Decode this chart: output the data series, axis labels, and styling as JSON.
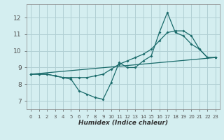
{
  "xlabel": "Humidex (Indice chaleur)",
  "bg_color": "#d4eef0",
  "grid_color": "#b0d0d4",
  "line_color": "#1a6b6b",
  "xlim": [
    -0.5,
    23.5
  ],
  "ylim": [
    6.5,
    12.8
  ],
  "yticks": [
    7,
    8,
    9,
    10,
    11,
    12
  ],
  "xticks": [
    0,
    1,
    2,
    3,
    4,
    5,
    6,
    7,
    8,
    9,
    10,
    11,
    12,
    13,
    14,
    15,
    16,
    17,
    18,
    19,
    20,
    21,
    22,
    23
  ],
  "line1_x": [
    0,
    1,
    2,
    3,
    4,
    5,
    6,
    7,
    8,
    9,
    10,
    11,
    12,
    13,
    14,
    15,
    16,
    17,
    18,
    19,
    20,
    21,
    22,
    23
  ],
  "line1_y": [
    8.6,
    8.6,
    8.6,
    8.5,
    8.4,
    8.3,
    7.6,
    7.4,
    7.2,
    7.1,
    8.1,
    9.3,
    9.0,
    9.0,
    9.4,
    9.7,
    11.1,
    12.3,
    11.1,
    10.9,
    10.4,
    10.1,
    9.6,
    9.6
  ],
  "line2_x": [
    0,
    1,
    2,
    3,
    4,
    5,
    6,
    7,
    8,
    9,
    10,
    11,
    12,
    13,
    14,
    15,
    16,
    17,
    18,
    19,
    20,
    21,
    22,
    23
  ],
  "line2_y": [
    8.6,
    8.6,
    8.6,
    8.5,
    8.4,
    8.4,
    8.4,
    8.4,
    8.5,
    8.6,
    8.9,
    9.2,
    9.4,
    9.6,
    9.8,
    10.1,
    10.6,
    11.1,
    11.2,
    11.2,
    10.9,
    10.1,
    9.6,
    9.6
  ],
  "line3_x": [
    0,
    23
  ],
  "line3_y": [
    8.6,
    9.6
  ]
}
